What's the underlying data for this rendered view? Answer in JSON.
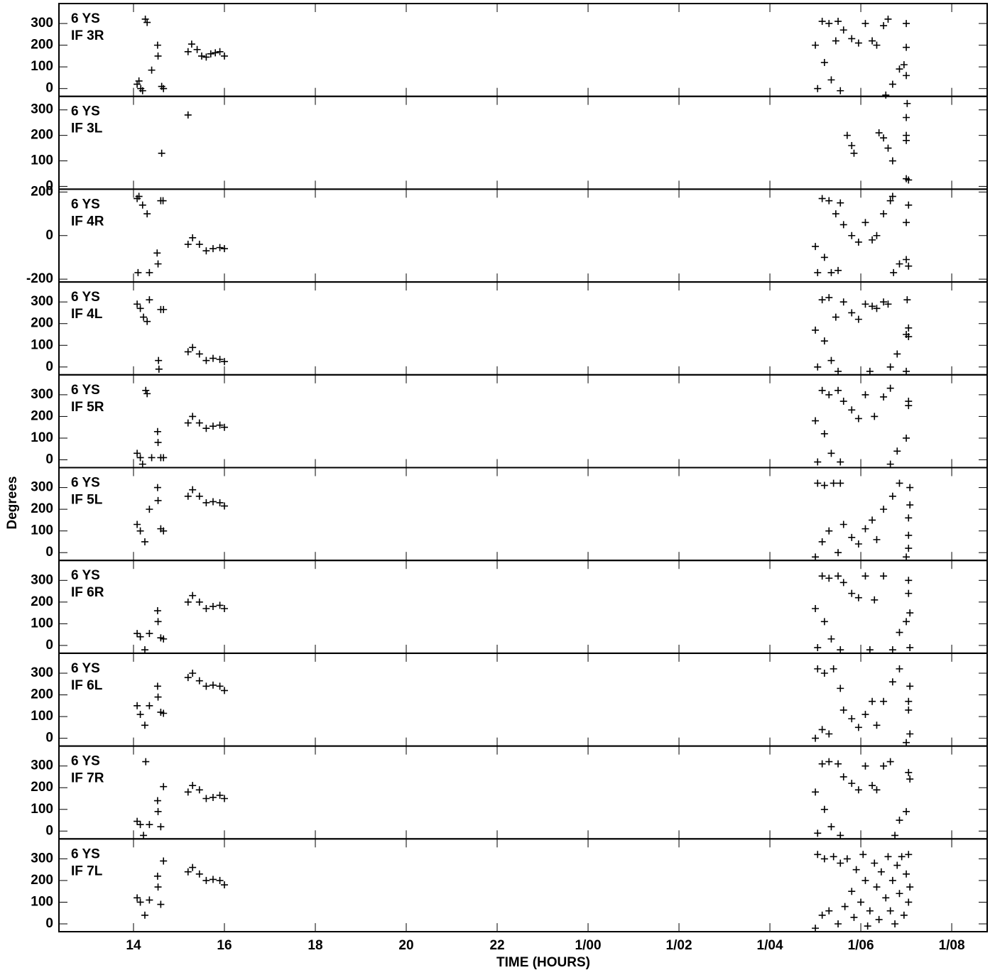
{
  "chart_data": {
    "type": "scatter",
    "xlabel": "TIME (HOURS)",
    "ylabel": "Degrees",
    "xlim": [
      12.36,
      32.78
    ],
    "xticks": [
      14,
      16,
      18,
      20,
      22,
      {
        "value": 24,
        "label": "1/00"
      },
      {
        "value": 26,
        "label": "1/02"
      },
      {
        "value": 28,
        "label": "1/04"
      },
      {
        "value": 30,
        "label": "1/06"
      },
      {
        "value": 32,
        "label": "1/08"
      }
    ],
    "color": "#000000",
    "panels": [
      {
        "station": "6 YS",
        "name": "IF 3R",
        "ylim": [
          -36,
          392
        ],
        "yticks": [
          0,
          100,
          200,
          300
        ],
        "x": [
          14.08,
          14.12,
          14.16,
          14.2,
          14.26,
          14.3,
          14.4,
          14.53,
          14.54,
          14.62,
          14.66,
          15.2,
          15.28,
          15.4,
          15.5,
          15.6,
          15.7,
          15.8,
          15.9,
          16.0,
          29.0,
          29.05,
          29.15,
          29.2,
          29.3,
          29.35,
          29.45,
          29.5,
          29.55,
          29.62,
          29.8,
          29.95,
          30.1,
          30.25,
          30.35,
          30.5,
          30.6,
          30.55,
          30.7,
          30.85,
          30.95,
          31.0,
          31.0,
          31.0
        ],
        "values": [
          20,
          35,
          0,
          -10,
          320,
          305,
          85,
          200,
          150,
          10,
          0,
          170,
          205,
          180,
          150,
          145,
          160,
          165,
          170,
          150,
          200,
          0,
          310,
          120,
          300,
          40,
          220,
          310,
          -10,
          270,
          230,
          210,
          300,
          220,
          200,
          290,
          320,
          -30,
          20,
          90,
          110,
          60,
          190,
          300
        ]
      },
      {
        "station": "6 YS",
        "name": "IF 3L",
        "ylim": [
          -11,
          353
        ],
        "yticks": [
          0,
          100,
          200,
          300
        ],
        "x": [
          15.2,
          14.62,
          29.7,
          29.8,
          29.85,
          30.4,
          30.5,
          30.6,
          30.7,
          31.0,
          31.0,
          31.0,
          31.02,
          31.0,
          31.05
        ],
        "values": [
          280,
          130,
          200,
          160,
          130,
          210,
          190,
          150,
          100,
          200,
          180,
          270,
          325,
          30,
          25
        ]
      },
      {
        "station": "6 YS",
        "name": "IF 4R",
        "ylim": [
          -213,
          213
        ],
        "yticks": [
          -200,
          0,
          200
        ],
        "x": [
          14.08,
          14.12,
          14.2,
          14.3,
          14.1,
          14.35,
          14.52,
          14.54,
          14.6,
          14.65,
          15.2,
          15.3,
          15.45,
          15.6,
          15.75,
          15.9,
          16.0,
          29.0,
          29.05,
          29.15,
          29.2,
          29.3,
          29.35,
          29.45,
          29.5,
          29.55,
          29.62,
          29.8,
          29.95,
          30.1,
          30.25,
          30.35,
          30.5,
          30.65,
          30.7,
          30.72,
          30.85,
          31.0,
          31.0,
          31.05,
          31.05
        ],
        "values": [
          170,
          180,
          140,
          100,
          -170,
          -170,
          -80,
          -130,
          160,
          160,
          -40,
          -10,
          -40,
          -70,
          -60,
          -55,
          -60,
          -50,
          -170,
          170,
          -100,
          160,
          -170,
          100,
          -160,
          150,
          50,
          0,
          -30,
          60,
          -20,
          0,
          100,
          160,
          180,
          -170,
          -130,
          -110,
          60,
          140,
          -140
        ]
      },
      {
        "station": "6 YS",
        "name": "IF 4L",
        "ylim": [
          -36,
          392
        ],
        "yticks": [
          0,
          100,
          200,
          300
        ],
        "x": [
          14.08,
          14.15,
          14.22,
          14.3,
          14.35,
          14.55,
          14.56,
          14.6,
          14.66,
          15.2,
          15.3,
          15.45,
          15.6,
          15.75,
          15.9,
          16.0,
          29.0,
          29.05,
          29.15,
          29.2,
          29.3,
          29.35,
          29.45,
          29.5,
          29.62,
          29.8,
          29.95,
          30.1,
          30.25,
          30.35,
          30.2,
          30.5,
          30.6,
          30.65,
          30.8,
          31.0,
          31.02,
          31.05,
          31.05,
          31.0
        ],
        "values": [
          290,
          270,
          230,
          210,
          310,
          30,
          -10,
          265,
          265,
          70,
          90,
          60,
          30,
          40,
          35,
          25,
          170,
          0,
          310,
          120,
          320,
          30,
          230,
          -20,
          300,
          250,
          220,
          290,
          280,
          270,
          -20,
          300,
          290,
          0,
          60,
          150,
          310,
          180,
          140,
          -20
        ]
      },
      {
        "station": "6 YS",
        "name": "IF 5R",
        "ylim": [
          -36,
          392
        ],
        "yticks": [
          0,
          100,
          200,
          300
        ],
        "x": [
          14.08,
          14.15,
          14.2,
          14.27,
          14.3,
          14.4,
          14.53,
          14.54,
          14.6,
          14.66,
          15.2,
          15.3,
          15.45,
          15.6,
          15.75,
          15.9,
          16.0,
          29.0,
          29.05,
          29.15,
          29.2,
          29.3,
          29.35,
          29.5,
          29.55,
          29.62,
          29.8,
          29.95,
          30.1,
          30.3,
          30.5,
          30.65,
          30.65,
          30.8,
          31.0,
          31.05,
          31.05
        ],
        "values": [
          30,
          10,
          -20,
          320,
          305,
          10,
          130,
          80,
          10,
          10,
          170,
          200,
          170,
          145,
          155,
          160,
          150,
          180,
          -10,
          320,
          120,
          300,
          30,
          320,
          -10,
          270,
          230,
          190,
          300,
          200,
          290,
          330,
          -20,
          40,
          100,
          270,
          250
        ]
      },
      {
        "station": "6 YS",
        "name": "IF 5L",
        "ylim": [
          -36,
          392
        ],
        "yticks": [
          0,
          100,
          200,
          300
        ],
        "x": [
          14.08,
          14.15,
          14.25,
          14.35,
          14.53,
          14.54,
          14.6,
          14.66,
          15.2,
          15.3,
          15.45,
          15.6,
          15.75,
          15.9,
          16.0,
          29.0,
          29.05,
          29.15,
          29.2,
          29.3,
          29.4,
          29.5,
          29.55,
          29.62,
          29.8,
          29.95,
          30.1,
          30.25,
          30.35,
          30.5,
          30.7,
          30.85,
          31.0,
          31.05,
          31.05,
          31.08,
          31.08,
          31.05
        ],
        "values": [
          130,
          100,
          50,
          200,
          300,
          240,
          110,
          100,
          260,
          290,
          260,
          230,
          235,
          230,
          215,
          -20,
          320,
          50,
          310,
          100,
          320,
          0,
          320,
          130,
          70,
          40,
          110,
          150,
          60,
          200,
          260,
          320,
          -20,
          160,
          80,
          300,
          220,
          20
        ]
      },
      {
        "station": "6 YS",
        "name": "IF 6R",
        "ylim": [
          -36,
          392
        ],
        "yticks": [
          0,
          100,
          200,
          300
        ],
        "x": [
          14.08,
          14.15,
          14.25,
          14.35,
          14.53,
          14.54,
          14.6,
          14.66,
          15.2,
          15.3,
          15.45,
          15.6,
          15.75,
          15.9,
          16.0,
          29.0,
          29.05,
          29.15,
          29.2,
          29.3,
          29.35,
          29.5,
          29.55,
          29.62,
          29.8,
          29.95,
          30.1,
          30.3,
          30.5,
          30.2,
          30.7,
          30.85,
          31.0,
          31.05,
          31.05,
          31.08,
          31.08
        ],
        "values": [
          55,
          40,
          -20,
          55,
          160,
          110,
          35,
          30,
          200,
          230,
          200,
          170,
          180,
          185,
          170,
          170,
          -10,
          320,
          110,
          310,
          30,
          320,
          -20,
          290,
          240,
          220,
          320,
          210,
          320,
          -20,
          -20,
          60,
          110,
          300,
          240,
          150,
          -10
        ]
      },
      {
        "station": "6 YS",
        "name": "IF 6L",
        "ylim": [
          -36,
          392
        ],
        "yticks": [
          0,
          100,
          200,
          300
        ],
        "x": [
          14.08,
          14.15,
          14.25,
          14.35,
          14.53,
          14.54,
          14.6,
          14.66,
          15.2,
          15.3,
          15.45,
          15.6,
          15.75,
          15.9,
          16.0,
          29.0,
          29.05,
          29.15,
          29.2,
          29.3,
          29.4,
          29.55,
          29.62,
          29.8,
          29.95,
          30.1,
          30.25,
          30.35,
          30.5,
          30.7,
          30.85,
          31.0,
          31.05,
          31.05,
          31.08,
          31.08
        ],
        "values": [
          150,
          110,
          60,
          150,
          240,
          190,
          120,
          115,
          280,
          300,
          265,
          240,
          245,
          240,
          220,
          0,
          320,
          40,
          300,
          20,
          320,
          230,
          130,
          90,
          50,
          110,
          170,
          60,
          170,
          260,
          320,
          -20,
          170,
          130,
          240,
          20
        ]
      },
      {
        "station": "6 YS",
        "name": "IF 7R",
        "ylim": [
          -36,
          392
        ],
        "yticks": [
          0,
          100,
          200,
          300
        ],
        "x": [
          14.08,
          14.15,
          14.22,
          14.27,
          14.35,
          14.53,
          14.54,
          14.6,
          14.66,
          15.2,
          15.3,
          15.45,
          15.6,
          15.75,
          15.9,
          16.0,
          29.0,
          29.05,
          29.15,
          29.2,
          29.3,
          29.35,
          29.5,
          29.55,
          29.62,
          29.8,
          29.95,
          30.1,
          30.25,
          30.35,
          30.5,
          30.65,
          30.75,
          30.85,
          31.0,
          31.05,
          31.08
        ],
        "values": [
          45,
          30,
          -20,
          320,
          30,
          140,
          90,
          20,
          205,
          180,
          210,
          190,
          150,
          155,
          165,
          150,
          180,
          -10,
          310,
          100,
          320,
          20,
          310,
          -20,
          250,
          220,
          190,
          300,
          210,
          190,
          300,
          320,
          -20,
          50,
          90,
          270,
          240
        ]
      },
      {
        "station": "6 YS",
        "name": "IF 7L",
        "ylim": [
          -36,
          392
        ],
        "yticks": [
          0,
          100,
          200,
          300
        ],
        "x": [
          14.08,
          14.15,
          14.25,
          14.35,
          14.53,
          14.54,
          14.6,
          14.66,
          15.2,
          15.3,
          15.45,
          15.6,
          15.75,
          15.9,
          16.0,
          29.0,
          29.05,
          29.15,
          29.2,
          29.3,
          29.4,
          29.5,
          29.55,
          29.65,
          29.7,
          29.8,
          29.85,
          29.9,
          30.0,
          30.05,
          30.1,
          30.15,
          30.2,
          30.3,
          30.35,
          30.4,
          30.45,
          30.55,
          30.6,
          30.65,
          30.7,
          30.75,
          30.8,
          30.85,
          30.9,
          30.95,
          31.0,
          31.05,
          31.05,
          31.08
        ],
        "values": [
          120,
          100,
          40,
          110,
          220,
          170,
          90,
          290,
          240,
          260,
          230,
          200,
          205,
          200,
          180,
          -20,
          320,
          40,
          300,
          60,
          310,
          0,
          280,
          80,
          300,
          150,
          30,
          250,
          100,
          320,
          200,
          -10,
          60,
          280,
          170,
          20,
          240,
          120,
          310,
          60,
          200,
          0,
          270,
          140,
          310,
          40,
          230,
          100,
          320,
          170
        ]
      }
    ]
  }
}
